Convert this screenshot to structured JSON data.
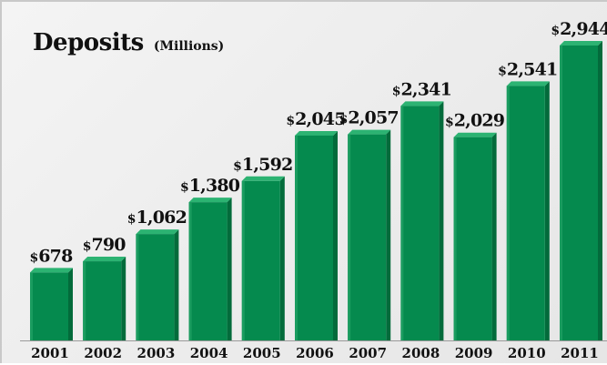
{
  "chart_data": {
    "type": "bar",
    "title": "Deposits",
    "subtitle": "(Millions)",
    "categories": [
      "2001",
      "2002",
      "2003",
      "2004",
      "2005",
      "2006",
      "2007",
      "2008",
      "2009",
      "2010",
      "2011"
    ],
    "values": [
      678,
      790,
      1062,
      1380,
      1592,
      2045,
      2057,
      2341,
      2029,
      2541,
      2944
    ],
    "value_labels": [
      "$678",
      "$790",
      "$1,062",
      "$1,380",
      "$1,592",
      "$2,045",
      "$2,057",
      "$2,341",
      "$2,029",
      "$2,541",
      "$2,944"
    ],
    "ylim": [
      0,
      3000
    ],
    "grid": false,
    "colors": {
      "bar_front": "#058a4e",
      "bar_top": "#2cb372",
      "bar_side": "#036b3b",
      "text": "#111111"
    }
  }
}
